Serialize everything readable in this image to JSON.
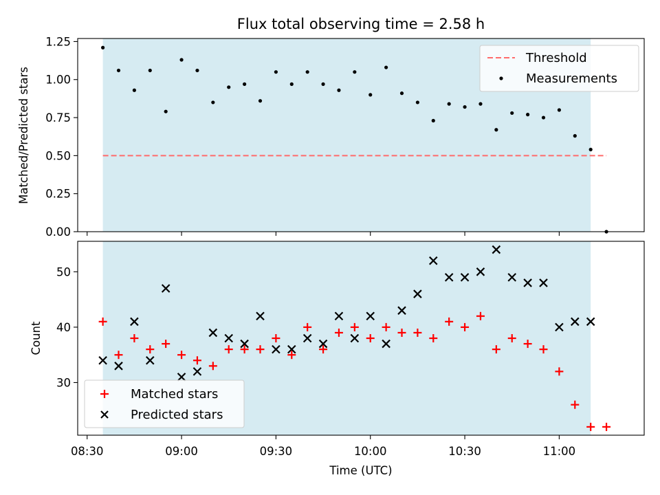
{
  "chart_data": [
    {
      "type": "scatter",
      "title": "Flux total observing time = 2.58 h",
      "xlabel": "",
      "ylabel": "Matched/Predicted stars",
      "xlim": [
        "08:27",
        "11:27"
      ],
      "ylim": [
        0,
        1.27
      ],
      "yticks": [
        0.0,
        0.25,
        0.5,
        0.75,
        1.0,
        1.25
      ],
      "ytick_labels": [
        "0.00",
        "0.25",
        "0.50",
        "0.75",
        "1.00",
        "1.25"
      ],
      "xticks": [
        "08:30",
        "09:00",
        "09:30",
        "10:00",
        "10:30",
        "11:00"
      ],
      "shaded_span": {
        "from": "08:35",
        "to": "11:10",
        "color": "#add8e6"
      },
      "threshold": {
        "name": "Threshold",
        "value": 0.5,
        "x_from": "08:35",
        "x_to": "11:15",
        "color": "#ff6b6b"
      },
      "legend_placement": "top-right",
      "series": [
        {
          "name": "Measurements",
          "color": "#000000",
          "marker": "dot",
          "x": [
            "08:35",
            "08:40",
            "08:45",
            "08:50",
            "08:55",
            "09:00",
            "09:05",
            "09:10",
            "09:15",
            "09:20",
            "09:25",
            "09:30",
            "09:35",
            "09:40",
            "09:45",
            "09:50",
            "09:55",
            "10:00",
            "10:05",
            "10:10",
            "10:15",
            "10:20",
            "10:25",
            "10:30",
            "10:35",
            "10:40",
            "10:45",
            "10:50",
            "10:55",
            "11:00",
            "11:05",
            "11:10",
            "11:15"
          ],
          "y": [
            1.21,
            1.06,
            0.93,
            1.06,
            0.79,
            1.13,
            1.06,
            0.85,
            0.95,
            0.97,
            0.86,
            1.05,
            0.97,
            1.05,
            0.97,
            0.93,
            1.05,
            0.9,
            1.08,
            0.91,
            0.85,
            0.73,
            0.84,
            0.82,
            0.84,
            0.67,
            0.78,
            0.77,
            0.75,
            0.8,
            0.63,
            0.54,
            0.0
          ]
        }
      ]
    },
    {
      "type": "scatter",
      "title": "",
      "xlabel": "Time (UTC)",
      "ylabel": "Count",
      "xlim": [
        "08:27",
        "11:27"
      ],
      "ylim": [
        20.5,
        55.5
      ],
      "yticks": [
        30,
        40,
        50
      ],
      "ytick_labels": [
        "30",
        "40",
        "50"
      ],
      "xticks": [
        "08:30",
        "09:00",
        "09:30",
        "10:00",
        "10:30",
        "11:00"
      ],
      "xtick_labels": [
        "08:30",
        "09:00",
        "09:30",
        "10:00",
        "10:30",
        "11:00"
      ],
      "shaded_span": {
        "from": "08:35",
        "to": "11:10",
        "color": "#add8e6"
      },
      "legend_placement": "bottom-left",
      "series": [
        {
          "name": "Matched stars",
          "color": "#ff0000",
          "marker": "plus",
          "x": [
            "08:35",
            "08:40",
            "08:45",
            "08:50",
            "08:55",
            "09:00",
            "09:05",
            "09:10",
            "09:15",
            "09:20",
            "09:25",
            "09:30",
            "09:35",
            "09:40",
            "09:45",
            "09:50",
            "09:55",
            "10:00",
            "10:05",
            "10:10",
            "10:15",
            "10:20",
            "10:25",
            "10:30",
            "10:35",
            "10:40",
            "10:45",
            "10:50",
            "10:55",
            "11:00",
            "11:05",
            "11:10",
            "11:15"
          ],
          "y": [
            41,
            35,
            38,
            36,
            37,
            35,
            34,
            33,
            36,
            36,
            36,
            38,
            35,
            40,
            36,
            39,
            40,
            38,
            40,
            39,
            39,
            38,
            41,
            40,
            42,
            36,
            38,
            37,
            36,
            32,
            26,
            22,
            22
          ]
        },
        {
          "name": "Predicted stars",
          "color": "#000000",
          "marker": "x",
          "x": [
            "08:35",
            "08:40",
            "08:45",
            "08:50",
            "08:55",
            "09:00",
            "09:05",
            "09:10",
            "09:15",
            "09:20",
            "09:25",
            "09:30",
            "09:35",
            "09:40",
            "09:45",
            "09:50",
            "09:55",
            "10:00",
            "10:05",
            "10:10",
            "10:15",
            "10:20",
            "10:25",
            "10:30",
            "10:35",
            "10:40",
            "10:45",
            "10:50",
            "10:55",
            "11:00",
            "11:05",
            "11:10"
          ],
          "y": [
            34,
            33,
            41,
            34,
            47,
            31,
            32,
            39,
            38,
            37,
            42,
            36,
            36,
            38,
            37,
            42,
            38,
            42,
            37,
            43,
            46,
            52,
            49,
            49,
            50,
            54,
            49,
            48,
            48,
            40,
            41,
            41
          ]
        }
      ]
    }
  ]
}
